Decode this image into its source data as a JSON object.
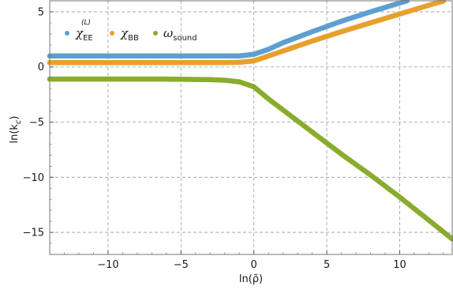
{
  "chart_data": {
    "type": "scatter",
    "title": "",
    "xlabel": "ln(ρ̃)",
    "ylabel": "ln(k",
    "ylabel_sub": "c",
    "ylabel_close": ")",
    "xlim": [
      -14,
      13.6
    ],
    "ylim": [
      -17,
      6
    ],
    "xticks": [
      -10,
      -5,
      0,
      5,
      10
    ],
    "xtick_labels": [
      "−10",
      "−5",
      "0",
      "5",
      "10"
    ],
    "yticks": [
      -15,
      -10,
      -5,
      0,
      5
    ],
    "ytick_labels": [
      "−15",
      "−10",
      "−5",
      "0",
      "5"
    ],
    "grid": true,
    "legend_position": "top-left",
    "series": [
      {
        "name": "χ",
        "name_sub": "EE",
        "name_sup": "(L)",
        "color": "#5e9fd1",
        "points": [
          [
            -14,
            1.0
          ],
          [
            -10,
            1.0
          ],
          [
            -6,
            1.0
          ],
          [
            -2,
            1.0
          ],
          [
            -1,
            1.0
          ],
          [
            0,
            1.15
          ],
          [
            1,
            1.6
          ],
          [
            2,
            2.2
          ],
          [
            4,
            3.2
          ],
          [
            6,
            4.15
          ],
          [
            8,
            5.0
          ],
          [
            10,
            5.8
          ],
          [
            11,
            6.2
          ]
        ]
      },
      {
        "name": "χ",
        "name_sub": "BB",
        "name_sup": "",
        "color": "#e8a02d",
        "points": [
          [
            -14,
            0.4
          ],
          [
            -10,
            0.4
          ],
          [
            -6,
            0.4
          ],
          [
            -2,
            0.4
          ],
          [
            -1,
            0.42
          ],
          [
            0,
            0.55
          ],
          [
            1,
            1.0
          ],
          [
            2,
            1.45
          ],
          [
            4,
            2.35
          ],
          [
            6,
            3.2
          ],
          [
            8,
            4.0
          ],
          [
            10,
            4.8
          ],
          [
            12,
            5.6
          ],
          [
            13.6,
            6.2
          ]
        ]
      },
      {
        "name": "ω",
        "name_sub": "sound",
        "name_sup": "",
        "color": "#8aac2e",
        "points": [
          [
            -14,
            -1.1
          ],
          [
            -10,
            -1.1
          ],
          [
            -6,
            -1.1
          ],
          [
            -3,
            -1.15
          ],
          [
            -2,
            -1.2
          ],
          [
            -1,
            -1.35
          ],
          [
            0,
            -1.8
          ],
          [
            1,
            -2.9
          ],
          [
            2,
            -3.9
          ],
          [
            4,
            -5.9
          ],
          [
            6,
            -7.9
          ],
          [
            8,
            -9.8
          ],
          [
            10,
            -11.8
          ],
          [
            12,
            -13.9
          ],
          [
            13.6,
            -15.6
          ]
        ]
      }
    ]
  }
}
